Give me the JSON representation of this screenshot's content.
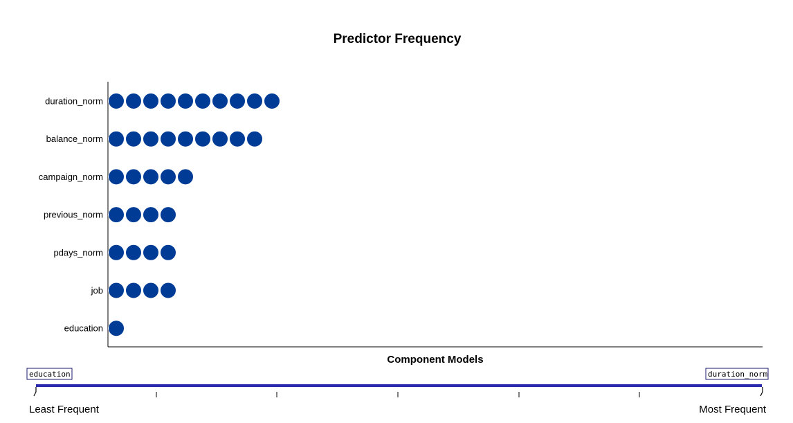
{
  "chart_data": {
    "type": "dot",
    "title": "Predictor Frequency",
    "xlabel": "Component Models",
    "ylabel": "",
    "categories": [
      "duration_norm",
      "balance_norm",
      "campaign_norm",
      "previous_norm",
      "pdays_norm",
      "job",
      "education"
    ],
    "values": [
      10,
      9,
      5,
      4,
      4,
      4,
      1
    ],
    "dot_color": "#003c96",
    "grid": false,
    "legend": {
      "least_label": "Least Frequent",
      "most_label": "Most Frequent",
      "least_item": "education",
      "most_item": "duration_norm",
      "bar_color": "#2b2bb0"
    }
  }
}
